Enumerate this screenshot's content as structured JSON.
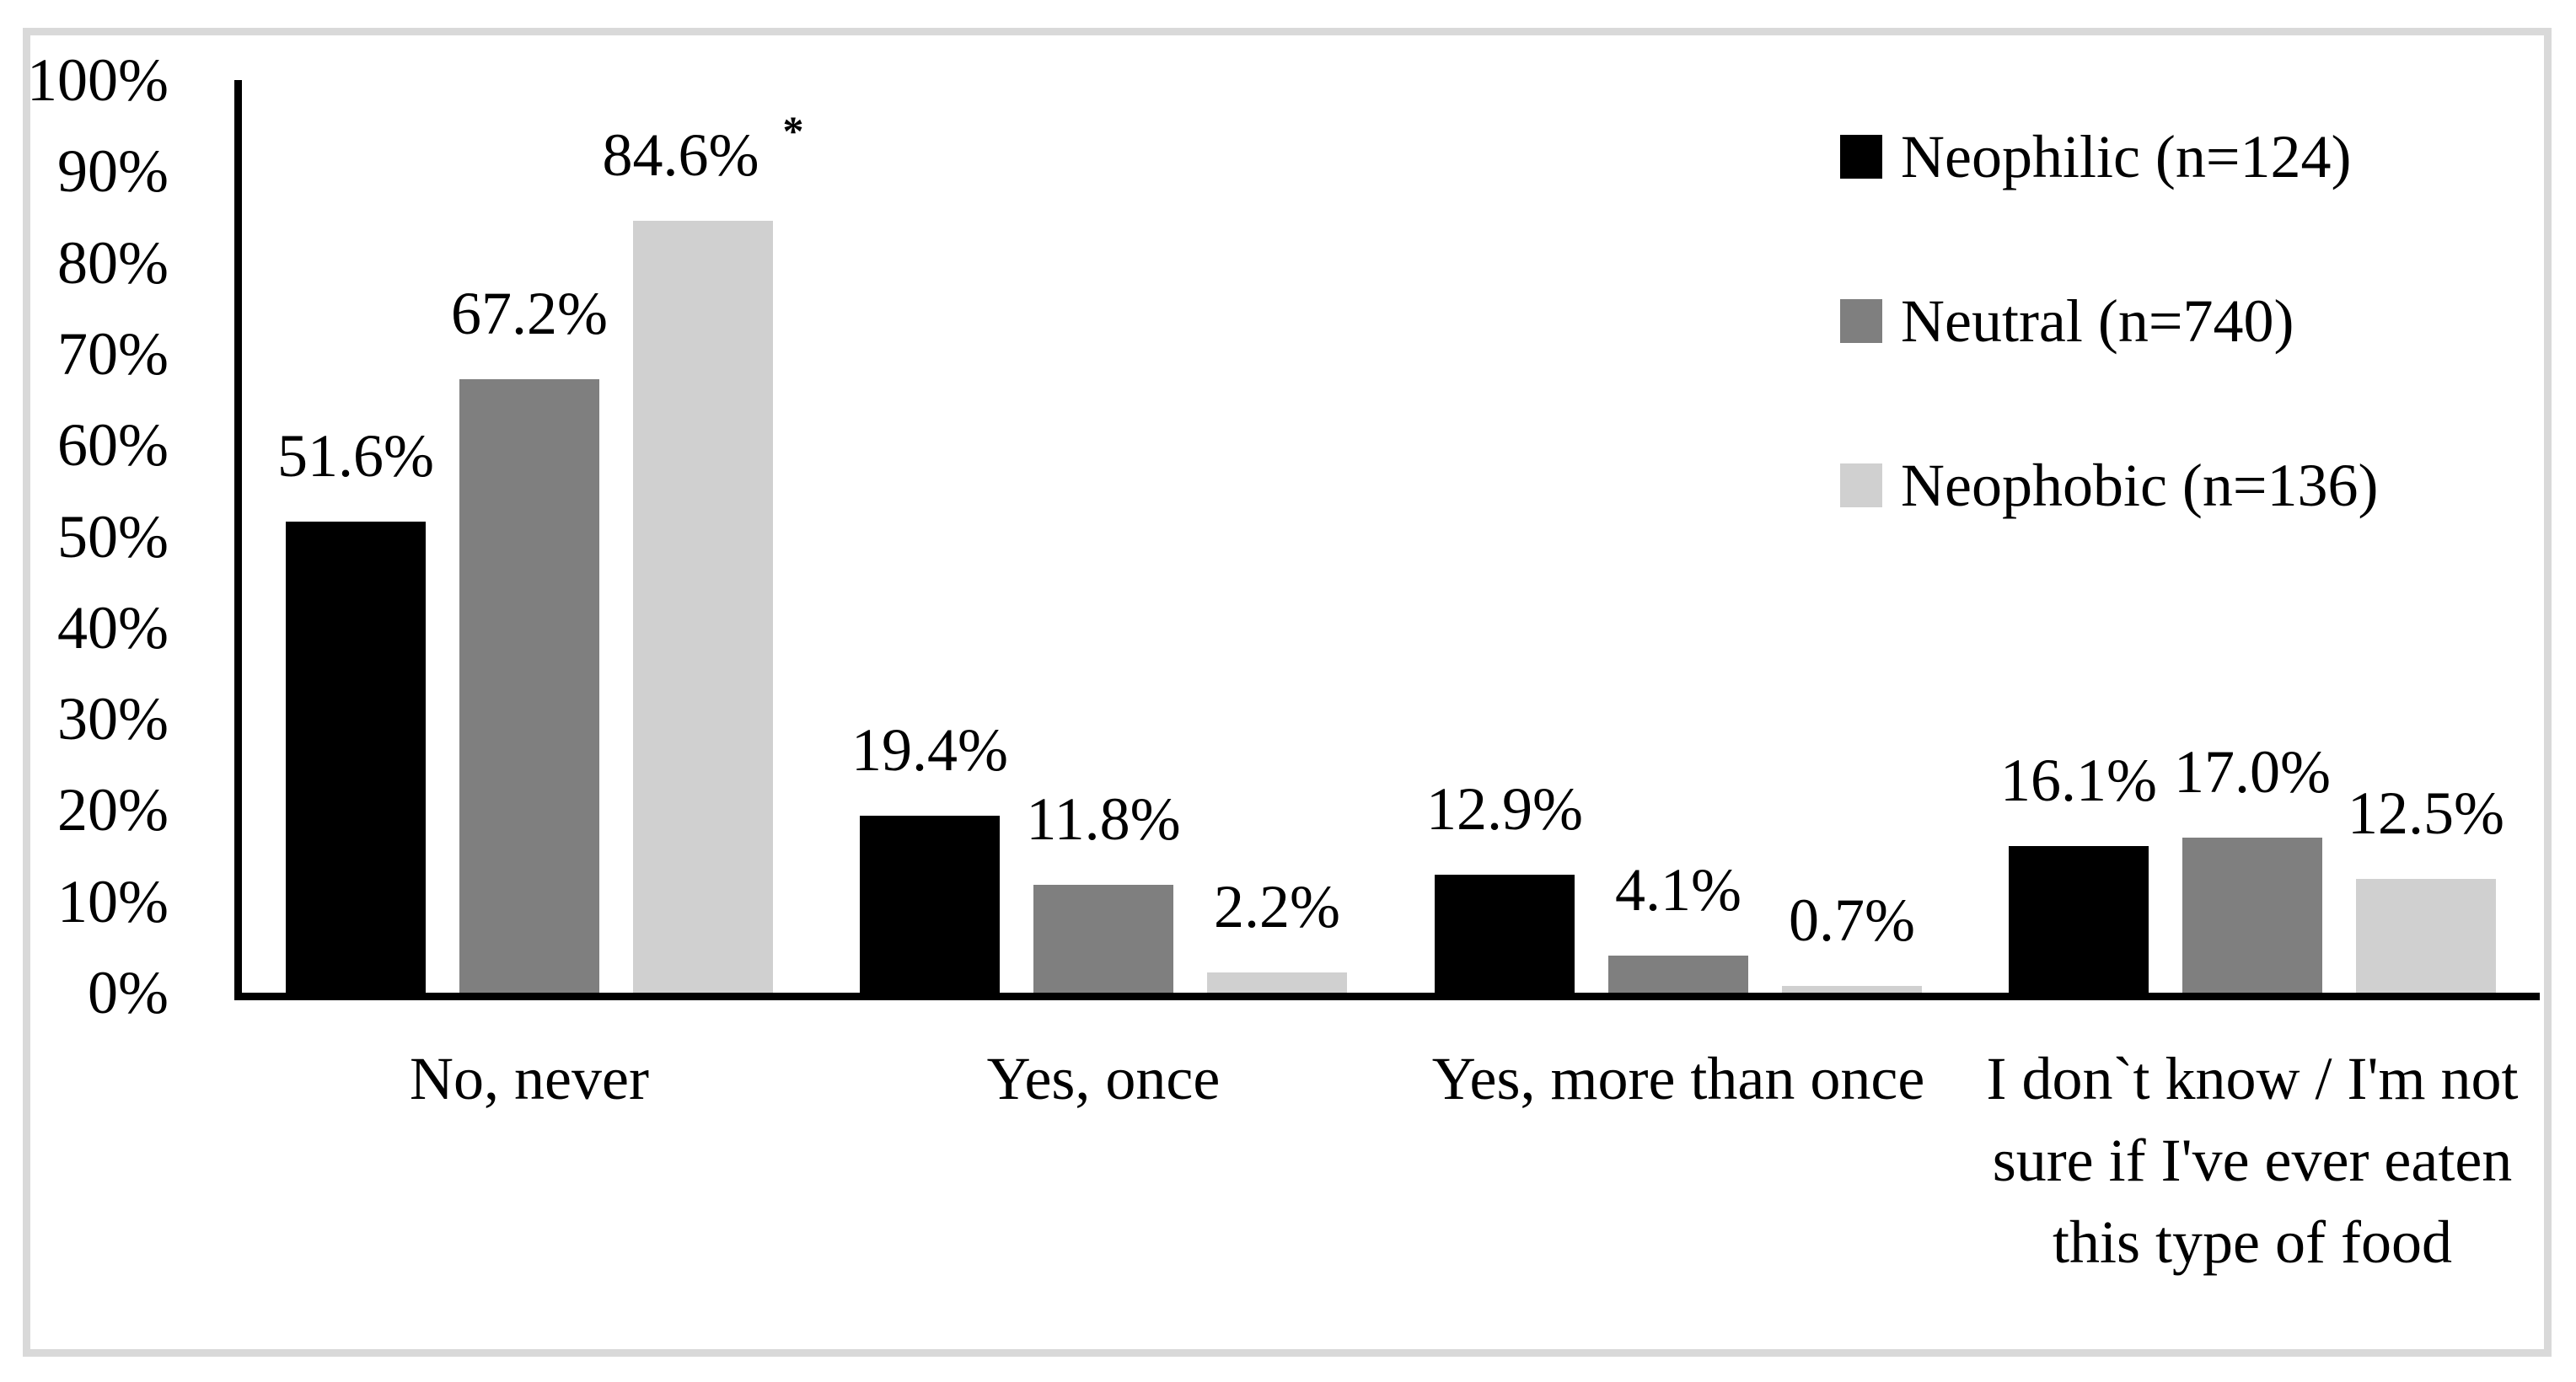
{
  "chart_data": {
    "type": "bar",
    "title": "",
    "xlabel": "",
    "ylabel": "",
    "categories": [
      "No, never",
      "Yes, once",
      "Yes, more than once",
      "I don`t know / I'm not\nsure if I've ever eaten\nthis type of food"
    ],
    "series": [
      {
        "name": "Neophilic (n=124)",
        "color": "#000000",
        "values": [
          51.6,
          19.4,
          12.9,
          16.1
        ]
      },
      {
        "name": "Neutral (n=740)",
        "color": "#7f7f7f",
        "values": [
          67.2,
          11.8,
          4.1,
          17.0
        ]
      },
      {
        "name": "Neophobic (n=136)",
        "color": "#d0d0d0",
        "values": [
          84.6,
          2.2,
          0.7,
          12.5
        ]
      }
    ],
    "value_label_decimals": 1,
    "value_label_suffix": "%",
    "annotations": [
      {
        "series_index": 2,
        "category_index": 0,
        "text": "*"
      }
    ],
    "y_axis": {
      "min": 0,
      "max": 100,
      "step": 10,
      "tick_suffix": "%"
    },
    "ylim": [
      0,
      100
    ],
    "grid": false,
    "legend_position": "top-right"
  },
  "colors": {
    "frame_border": "#d9d9d9",
    "axis": "#000000",
    "background": "#ffffff"
  }
}
